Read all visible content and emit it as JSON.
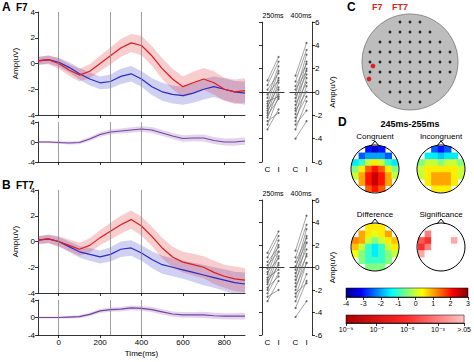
{
  "chart_data": [
    {
      "panel": "A",
      "title": "F7",
      "type": "line",
      "y_label": "Amp(uV)",
      "tick_labels": "y",
      "x": [
        -100,
        -50,
        0,
        50,
        100,
        150,
        200,
        250,
        300,
        350,
        400,
        450,
        500,
        550,
        600,
        650,
        700,
        750,
        800,
        850,
        900
      ],
      "xlim": [
        -100,
        900
      ],
      "xticks": [
        0,
        200,
        400,
        600,
        800
      ],
      "ylim": [
        -4,
        4
      ],
      "yticks": [
        -4,
        -2,
        0,
        2,
        4
      ],
      "vlines": [
        0,
        250,
        400
      ],
      "series": [
        {
          "color": "#2b2bc8",
          "values": [
            0.2,
            0.3,
            0.1,
            -0.3,
            -0.8,
            -1.2,
            -1.5,
            -1.4,
            -1.0,
            -0.8,
            -1.2,
            -1.8,
            -2.2,
            -2.4,
            -2.5,
            -2.3,
            -2.0,
            -1.8,
            -2.0,
            -2.2,
            -2.3
          ],
          "error": [
            0.3,
            0.3,
            0.35,
            0.4,
            0.45,
            0.5,
            0.5,
            0.55,
            0.6,
            0.6,
            0.6,
            0.65,
            0.7,
            0.7,
            0.7,
            0.75,
            0.8,
            0.8,
            0.85,
            0.85,
            0.9
          ]
        },
        {
          "color": "#e01b1b",
          "values": [
            0.2,
            0.3,
            0.0,
            -0.5,
            -0.9,
            -0.6,
            0.0,
            0.6,
            1.2,
            1.6,
            1.4,
            0.6,
            -0.4,
            -1.2,
            -1.8,
            -1.5,
            -1.2,
            -1.5,
            -2.0,
            -2.2,
            -2.1
          ],
          "error": [
            0.3,
            0.35,
            0.4,
            0.45,
            0.5,
            0.55,
            0.6,
            0.65,
            0.7,
            0.7,
            0.75,
            0.75,
            0.8,
            0.8,
            0.8,
            0.85,
            0.85,
            0.9,
            0.9,
            0.95,
            0.95
          ]
        }
      ],
      "difference": {
        "color": "#7b3fa6",
        "ylim": [
          -4,
          4
        ],
        "yticks": [
          -4,
          0,
          4
        ],
        "values": [
          0.0,
          0.0,
          -0.1,
          -0.2,
          -0.1,
          0.6,
          1.5,
          2.0,
          2.2,
          2.4,
          2.6,
          2.4,
          1.8,
          1.2,
          0.7,
          0.8,
          0.8,
          0.3,
          0.0,
          0.0,
          0.2
        ],
        "error": [
          0.2,
          0.2,
          0.25,
          0.3,
          0.35,
          0.4,
          0.45,
          0.5,
          0.5,
          0.55,
          0.55,
          0.6,
          0.6,
          0.6,
          0.65,
          0.65,
          0.7,
          0.7,
          0.7,
          0.75,
          0.75
        ]
      },
      "paired": {
        "type": "line",
        "categories": [
          "C",
          "I"
        ],
        "ylim": [
          -6,
          6
        ],
        "yticks": [
          -6,
          -4,
          -2,
          0,
          2,
          4,
          6
        ],
        "y_label": "Amp(uV)",
        "color": "#666666",
        "windows": [
          {
            "label": "250ms",
            "C": [
              -3.2,
              -2.8,
              -2.5,
              -2.2,
              -2.0,
              -1.8,
              -1.6,
              -1.4,
              -1.2,
              -1.0,
              -0.8,
              -0.5,
              -0.2,
              0.2,
              0.6,
              1.0
            ],
            "I": [
              -1.5,
              -0.4,
              -1.8,
              0.2,
              -0.6,
              0.8,
              -0.2,
              1.2,
              0.4,
              1.8,
              -0.4,
              2.2,
              1.0,
              1.6,
              2.6,
              3.0
            ]
          },
          {
            "label": "400ms",
            "C": [
              -4.0,
              -3.2,
              -2.8,
              -2.5,
              -2.2,
              -1.9,
              -1.6,
              -1.4,
              -1.1,
              -0.8,
              -0.5,
              -0.2,
              0.2,
              0.5,
              0.9,
              1.4
            ],
            "I": [
              -2.5,
              -0.8,
              -1.6,
              0.5,
              -0.4,
              1.2,
              0.0,
              2.0,
              0.8,
              2.6,
              1.5,
              3.2,
              1.8,
              2.4,
              3.6,
              4.2
            ]
          }
        ]
      }
    },
    {
      "panel": "B",
      "title": "FT7",
      "type": "line",
      "y_label": "Amp(uV)",
      "x_label": "Time(ms)",
      "x": [
        -100,
        -50,
        0,
        50,
        100,
        150,
        200,
        250,
        300,
        350,
        400,
        450,
        500,
        550,
        600,
        650,
        700,
        750,
        800,
        850,
        900
      ],
      "xlim": [
        -100,
        900
      ],
      "xticks": [
        0,
        200,
        400,
        600,
        800
      ],
      "ylim": [
        -4,
        4
      ],
      "yticks": [
        -4,
        -2,
        0,
        2,
        4
      ],
      "vlines": [
        0,
        250,
        400
      ],
      "series": [
        {
          "color": "#2b2bc8",
          "values": [
            0.1,
            0.2,
            0.0,
            -0.4,
            -0.8,
            -1.0,
            -1.2,
            -1.0,
            -0.6,
            -0.5,
            -0.9,
            -1.4,
            -1.8,
            -2.0,
            -2.2,
            -2.4,
            -2.6,
            -2.8,
            -3.0,
            -3.2,
            -3.3
          ],
          "error": [
            0.3,
            0.3,
            0.35,
            0.4,
            0.45,
            0.5,
            0.5,
            0.55,
            0.6,
            0.6,
            0.6,
            0.65,
            0.7,
            0.7,
            0.7,
            0.75,
            0.8,
            0.8,
            0.85,
            0.85,
            0.9
          ]
        },
        {
          "color": "#e01b1b",
          "values": [
            0.1,
            0.2,
            0.0,
            -0.3,
            -0.6,
            -0.3,
            0.3,
            0.8,
            1.3,
            1.7,
            1.2,
            0.4,
            -0.5,
            -1.2,
            -1.6,
            -1.8,
            -2.0,
            -2.4,
            -2.7,
            -2.9,
            -3.0
          ],
          "error": [
            0.3,
            0.35,
            0.4,
            0.45,
            0.5,
            0.55,
            0.6,
            0.65,
            0.7,
            0.7,
            0.75,
            0.75,
            0.8,
            0.8,
            0.8,
            0.85,
            0.85,
            0.9,
            0.9,
            0.95,
            0.95
          ]
        }
      ],
      "difference": {
        "color": "#7b3fa6",
        "ylim": [
          -4,
          4
        ],
        "yticks": [
          -4,
          0,
          4
        ],
        "values": [
          0.0,
          0.0,
          0.0,
          0.1,
          0.2,
          0.7,
          1.5,
          1.8,
          1.9,
          2.2,
          2.1,
          1.8,
          1.3,
          0.8,
          0.6,
          0.6,
          0.6,
          0.4,
          0.3,
          0.3,
          0.3
        ],
        "error": [
          0.2,
          0.2,
          0.25,
          0.3,
          0.35,
          0.4,
          0.45,
          0.5,
          0.5,
          0.55,
          0.55,
          0.6,
          0.6,
          0.6,
          0.65,
          0.65,
          0.7,
          0.7,
          0.7,
          0.75,
          0.75
        ]
      },
      "paired": {
        "type": "line",
        "categories": [
          "C",
          "I"
        ],
        "ylim": [
          -6,
          6
        ],
        "yticks": [
          -6,
          -4,
          -2,
          0,
          2,
          4,
          6
        ],
        "y_label": "Amp(uV)",
        "color": "#666666",
        "windows": [
          {
            "label": "250ms",
            "C": [
              -3.0,
              -2.6,
              -2.3,
              -2.0,
              -1.8,
              -1.5,
              -1.3,
              -1.1,
              -0.9,
              -0.6,
              -0.4,
              -0.1,
              0.2,
              0.5,
              0.9,
              1.3
            ],
            "I": [
              -1.2,
              -2.0,
              -0.5,
              0.4,
              -0.8,
              1.0,
              0.2,
              1.4,
              -0.2,
              2.0,
              0.8,
              2.4,
              1.4,
              1.8,
              2.8,
              3.2
            ]
          },
          {
            "label": "400ms",
            "C": [
              -4.4,
              -3.6,
              -3.0,
              -2.6,
              -2.3,
              -2.0,
              -1.7,
              -1.4,
              -1.1,
              -0.8,
              -0.5,
              -0.2,
              0.1,
              0.5,
              0.9,
              1.5
            ],
            "I": [
              -3.0,
              -1.2,
              -0.6,
              0.4,
              -1.4,
              1.2,
              0.4,
              2.2,
              1.0,
              2.8,
              1.6,
              3.4,
              2.2,
              2.6,
              3.8,
              4.6
            ]
          }
        ]
      }
    },
    {
      "panel": "D",
      "type": "heatmap",
      "title": "245ms-255ms",
      "colorbar": {
        "range": [
          -4,
          3
        ],
        "ticks": [
          -4,
          -3,
          -2,
          -1,
          0,
          1,
          2,
          3
        ]
      },
      "maps": [
        {
          "title": "Congruent",
          "cells": [
            [
              null,
              null,
              -3,
              -3.5,
              -3,
              null,
              null
            ],
            [
              null,
              -2.5,
              -2,
              -2,
              -2,
              -2.5,
              null
            ],
            [
              -1.5,
              -1,
              0,
              0.5,
              0,
              -1,
              -1.5
            ],
            [
              -0.5,
              0.5,
              1.5,
              2,
              1.5,
              0.5,
              -0.5
            ],
            [
              0,
              1,
              2,
              2.5,
              2,
              1,
              0
            ],
            [
              null,
              1,
              2,
              2.5,
              2,
              1,
              null
            ],
            [
              null,
              null,
              1.5,
              2,
              1.5,
              null,
              null
            ]
          ]
        },
        {
          "title": "Incongruent",
          "cells": [
            [
              null,
              null,
              -2.5,
              -3,
              -2.5,
              null,
              null
            ],
            [
              null,
              -1.5,
              -1.5,
              -1.8,
              -1.5,
              -1.5,
              null
            ],
            [
              -0.5,
              0,
              0,
              -0.5,
              0,
              0,
              -0.5
            ],
            [
              0,
              0.5,
              0.5,
              0.5,
              0.5,
              0.5,
              0
            ],
            [
              0,
              0.5,
              1,
              1,
              1,
              0.5,
              0
            ],
            [
              null,
              0.5,
              1,
              1,
              1,
              0.5,
              null
            ],
            [
              null,
              null,
              0.5,
              0.5,
              0.5,
              null,
              null
            ]
          ]
        },
        {
          "title": "Difference",
          "cells": [
            [
              null,
              null,
              0.5,
              0.5,
              0.5,
              null,
              null
            ],
            [
              null,
              1,
              0.5,
              0.2,
              0.5,
              1,
              null
            ],
            [
              1.2,
              1,
              0,
              -0.5,
              0,
              0.5,
              0.8
            ],
            [
              0.8,
              0,
              -1,
              -1.5,
              -1,
              0,
              0.5
            ],
            [
              0.3,
              -0.5,
              -1,
              -1.5,
              -1,
              -0.5,
              0
            ],
            [
              null,
              -0.5,
              -1,
              -1,
              -1,
              -0.5,
              null
            ],
            [
              null,
              null,
              -0.5,
              -0.5,
              -0.5,
              null,
              null
            ]
          ]
        }
      ],
      "significance": {
        "title": "Significance",
        "cells": [
          [
            null,
            null,
            0.5,
            0.5,
            0.5,
            null,
            null
          ],
          [
            null,
            0.001,
            0.2,
            0.5,
            0.5,
            0.1,
            null
          ],
          [
            0.0001,
            1e-05,
            0.3,
            0.5,
            0.5,
            0.01,
            0.2
          ],
          [
            1e-05,
            0.001,
            0.5,
            0.5,
            0.5,
            0.3,
            0.5
          ],
          [
            0.01,
            0.2,
            0.5,
            0.5,
            0.5,
            0.5,
            0.5
          ],
          [
            null,
            0.5,
            0.5,
            0.5,
            0.5,
            0.5,
            null
          ],
          [
            null,
            null,
            0.5,
            0.5,
            0.5,
            null,
            null
          ]
        ],
        "colorbar": {
          "log": true,
          "range": [
            1e-09,
            0.05
          ],
          "ticks": [
            {
              "value": 1e-09,
              "label": "10⁻⁹"
            },
            {
              "value": 1e-07,
              "label": "10⁻⁷"
            },
            {
              "value": 1e-05,
              "label": "10⁻⁵"
            },
            {
              "value": 0.001,
              "label": "10⁻³"
            },
            {
              "value": 0.05,
              "label": ">.05"
            }
          ]
        }
      }
    }
  ],
  "diagram": {
    "panel": "C",
    "electrodes": [
      "F7",
      "FT7"
    ],
    "color": "#e02020"
  }
}
